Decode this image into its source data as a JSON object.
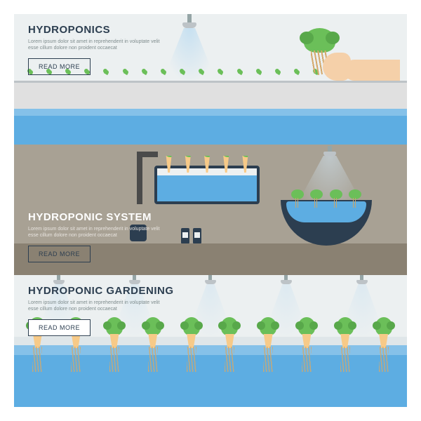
{
  "banners": [
    {
      "title": "HYDROPONICS",
      "desc": "Lorem ipsum dolor sit amet in reprehenderit in voluptate velit esse cillum dolore non proident occaecat",
      "button": "READ MORE",
      "bg_color": "#ecf0f1",
      "title_color": "#2c3e50",
      "desc_color": "#7f8c8d",
      "water_color": "#5dade2",
      "plant_color": "#6bbf59",
      "seedling_count": 20
    },
    {
      "title": "HYDROPONIC SYSTEM",
      "desc": "Lorem ipsum dolor sit amet in reprehenderit in voluptate velit esse cillum dolore non proident occaecat",
      "button": "READ MORE",
      "bg_color": "#a8a194",
      "floor_color": "#8a8172",
      "title_color": "#ffffff",
      "desc_color": "#e8e4df",
      "tank_color": "#5dade2",
      "bowl_color": "#2c3e50",
      "tank_plant_count": 5,
      "bowl_plant_count": 4,
      "bottle_count": 2
    },
    {
      "title": "HYDROPONIC GARDENING",
      "desc": "Lorem ipsum dolor sit amet in reprehenderit in voluptate velit esse cillum dolore non proident occaecat",
      "button": "READ MORE",
      "bg_color": "#ecf0f1",
      "title_color": "#2c3e50",
      "desc_color": "#7f8c8d",
      "water_color": "#5dade2",
      "plant_color": "#6bbf59",
      "plant_count": 10,
      "sprinkler_count": 5
    }
  ],
  "style": {
    "title_fontsize": 15,
    "desc_fontsize": 7,
    "button_fontsize": 9,
    "font_family": "Arial"
  }
}
